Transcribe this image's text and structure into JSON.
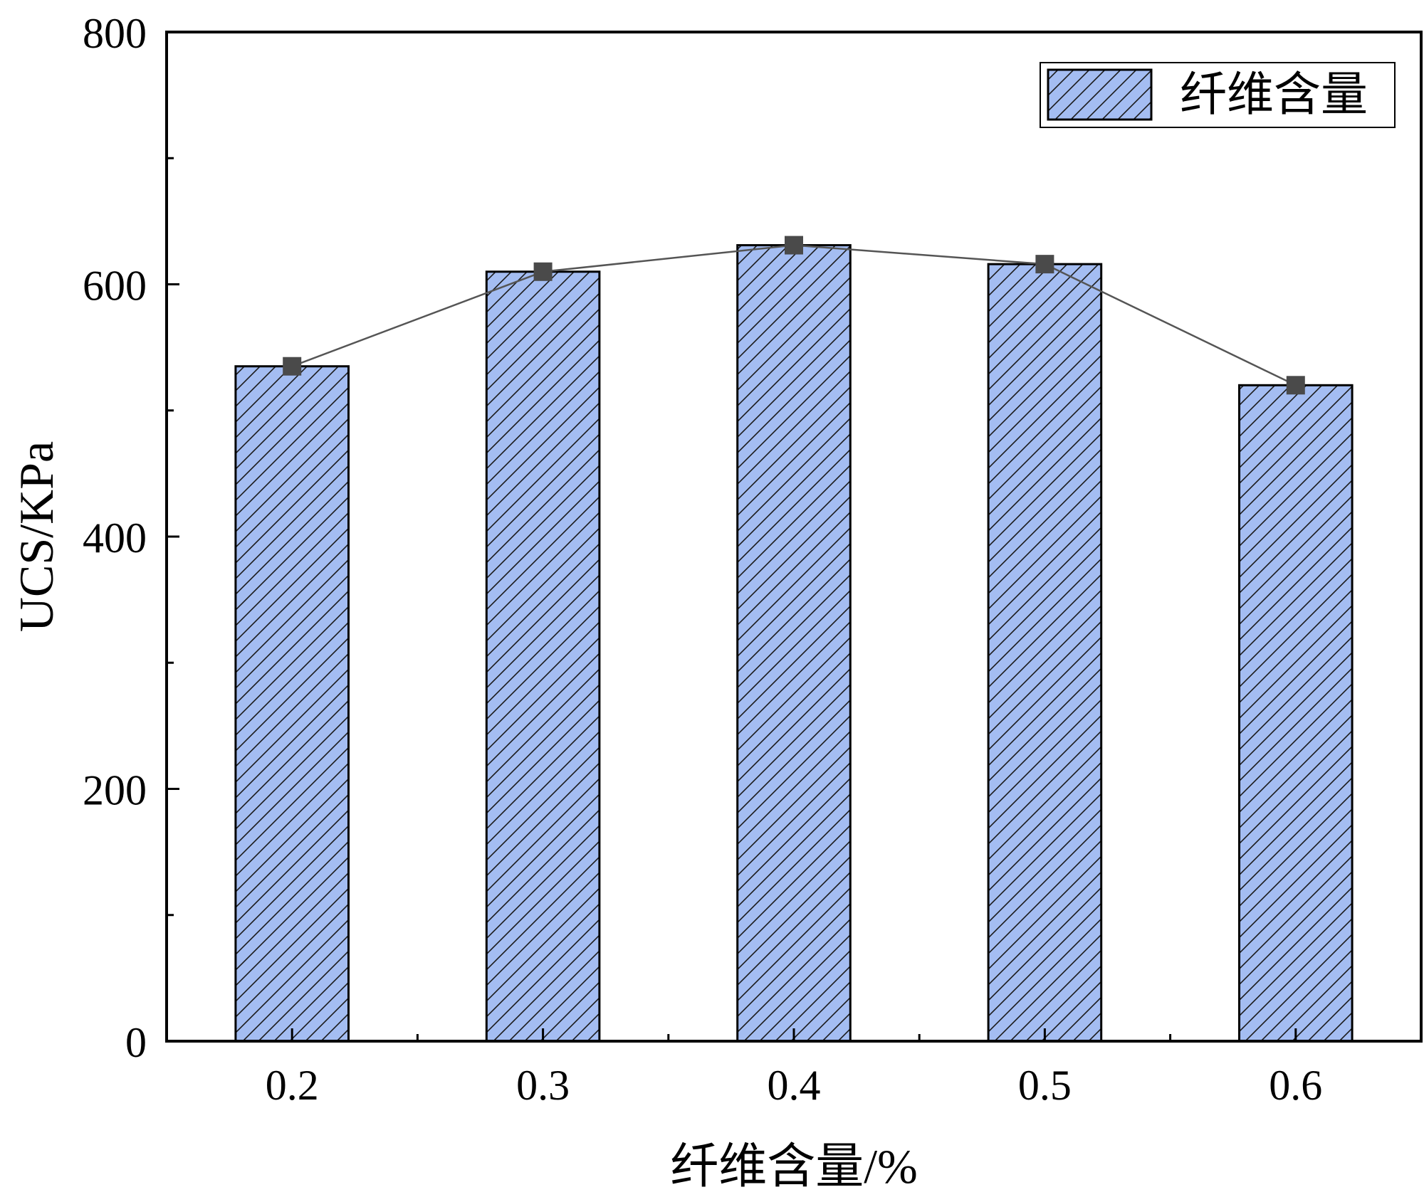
{
  "chart_data": {
    "type": "bar",
    "categories": [
      "0.2",
      "0.3",
      "0.4",
      "0.5",
      "0.6"
    ],
    "series": [
      {
        "name": "纤维含量",
        "values": [
          535,
          610,
          631,
          616,
          520
        ]
      }
    ],
    "overlay_line": {
      "values": [
        535,
        610,
        631,
        616,
        520
      ],
      "marker": "square"
    },
    "xlabel": "纤维含量/%",
    "ylabel": "UCS/KPa",
    "ylim": [
      0,
      800
    ],
    "yticks": [
      "0",
      "200",
      "400",
      "600",
      "800"
    ],
    "grid": false,
    "legend": {
      "position": "top-right",
      "label": "纤维含量"
    },
    "colors": {
      "bar_fill": "#a4bdf2",
      "bar_hatch": "#1a1a1a",
      "line": "#555555",
      "marker": "#4a4a4a",
      "axis": "#000000"
    }
  }
}
